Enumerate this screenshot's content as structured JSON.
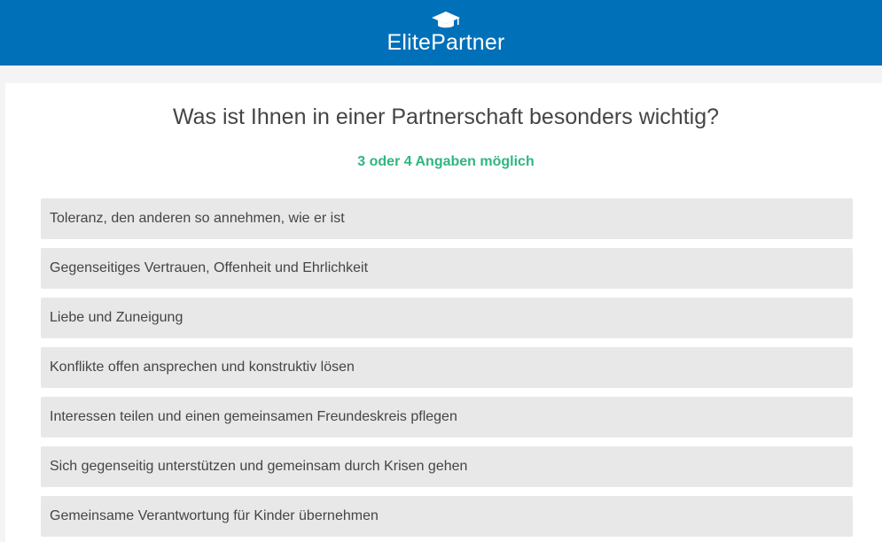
{
  "header": {
    "brand": "ElitePartner",
    "logo_icon": "graduation-cap-icon",
    "bg_color": "#0070b9"
  },
  "question": {
    "title": "Was ist Ihnen in einer Partnerschaft besonders wichtig?",
    "hint": "3 oder 4 Angaben möglich",
    "hint_color": "#2fb67e"
  },
  "options": [
    {
      "label": "Toleranz, den anderen so annehmen, wie er ist"
    },
    {
      "label": "Gegenseitiges Vertrauen, Offenheit und Ehrlichkeit"
    },
    {
      "label": "Liebe und Zuneigung"
    },
    {
      "label": "Konflikte offen ansprechen und konstruktiv lösen"
    },
    {
      "label": "Interessen teilen und einen gemeinsamen Freundeskreis pflegen"
    },
    {
      "label": "Sich gegenseitig unterstützen und gemeinsam durch Krisen gehen"
    },
    {
      "label": "Gemeinsame Verantwortung für Kinder übernehmen"
    }
  ]
}
